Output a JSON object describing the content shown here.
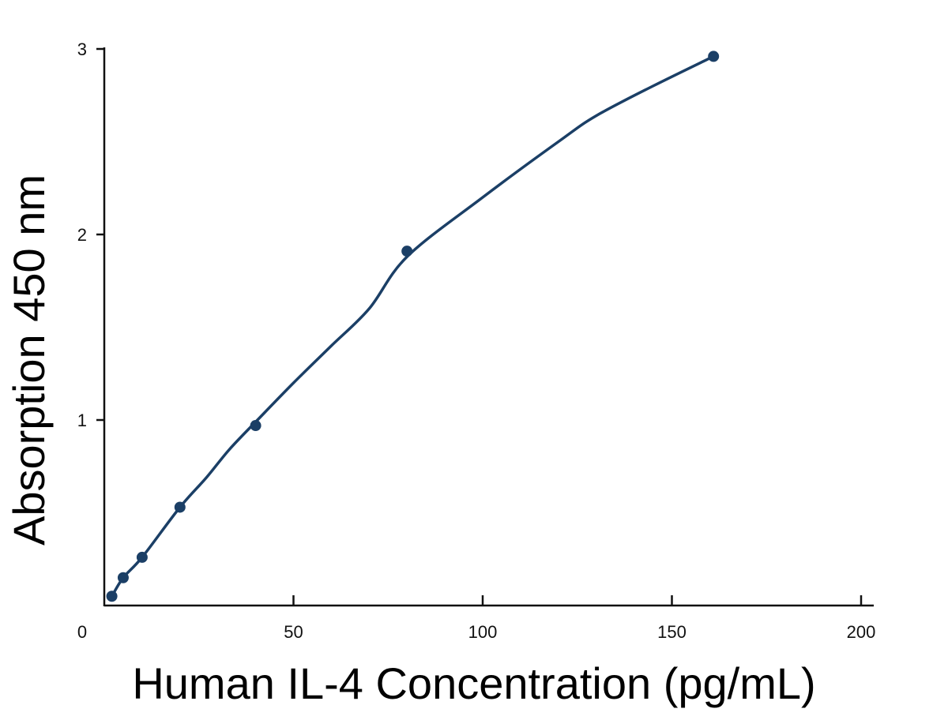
{
  "chart_data": {
    "type": "line",
    "title": "",
    "xlabel": "Human IL-4 Concentration (pg/mL)",
    "ylabel": "Absorption 450 nm",
    "xlim": [
      0,
      200
    ],
    "ylim": [
      0,
      3
    ],
    "x_ticks": [
      "0",
      "50",
      "100",
      "150",
      "200"
    ],
    "y_ticks": [
      "1",
      "2",
      "3"
    ],
    "grid": false,
    "series": [
      {
        "color": "#1b3f66",
        "points": [
          {
            "x": 2,
            "y": 0.05
          },
          {
            "x": 5,
            "y": 0.15
          },
          {
            "x": 10,
            "y": 0.26
          },
          {
            "x": 20,
            "y": 0.53
          },
          {
            "x": 40,
            "y": 0.97
          },
          {
            "x": 80,
            "y": 1.91
          },
          {
            "x": 161,
            "y": 2.96
          }
        ],
        "curve": [
          {
            "x": 2,
            "y": 0.05
          },
          {
            "x": 5,
            "y": 0.15
          },
          {
            "x": 10,
            "y": 0.26
          },
          {
            "x": 20,
            "y": 0.53
          },
          {
            "x": 27,
            "y": 0.69
          },
          {
            "x": 33,
            "y": 0.84
          },
          {
            "x": 40,
            "y": 0.99
          },
          {
            "x": 50,
            "y": 1.2
          },
          {
            "x": 60,
            "y": 1.4
          },
          {
            "x": 70,
            "y": 1.6
          },
          {
            "x": 80,
            "y": 1.88
          },
          {
            "x": 100,
            "y": 2.2
          },
          {
            "x": 120,
            "y": 2.5
          },
          {
            "x": 130,
            "y": 2.64
          },
          {
            "x": 145,
            "y": 2.8
          },
          {
            "x": 161,
            "y": 2.96
          }
        ]
      }
    ]
  }
}
